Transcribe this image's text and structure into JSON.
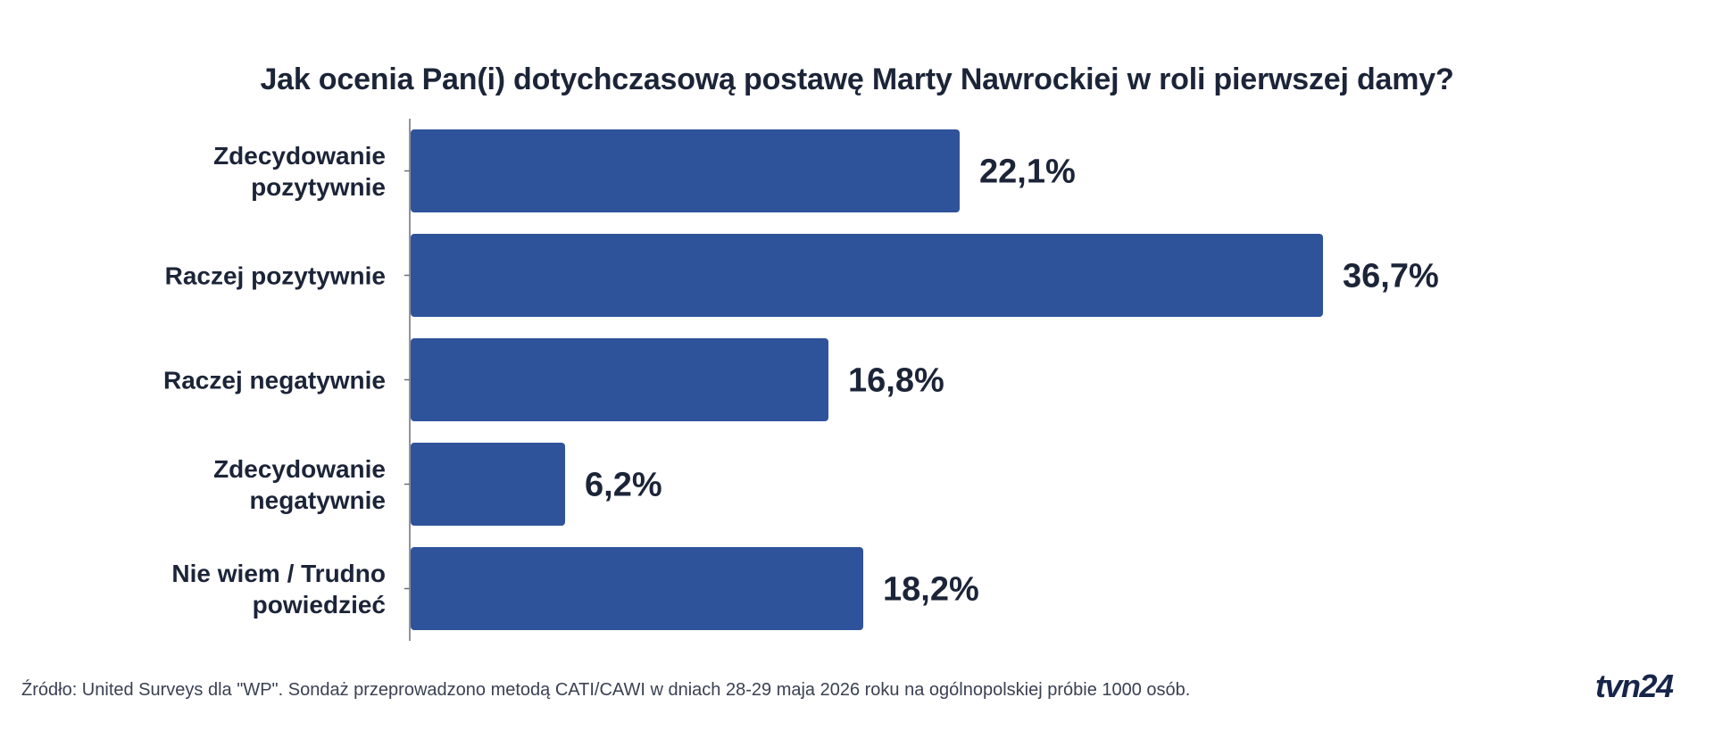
{
  "chart_data": {
    "type": "bar",
    "orientation": "horizontal",
    "title": "Jak ocenia Pan(i) dotychczasową postawę Marty Nawrockiej w roli pierwszej damy?",
    "categories": [
      [
        "Zdecydowanie",
        "pozytywnie"
      ],
      [
        "Raczej pozytywnie"
      ],
      [
        "Raczej negatywnie"
      ],
      [
        "Zdecydowanie",
        "negatywnie"
      ],
      [
        "Nie wiem / Trudno",
        "powiedzieć"
      ]
    ],
    "values": [
      22.1,
      36.7,
      16.8,
      6.2,
      18.2
    ],
    "value_labels": [
      "22,1%",
      "36,7%",
      "16,8%",
      "6,2%",
      "18,2%"
    ],
    "xlim": [
      0,
      36.7
    ],
    "grid": false,
    "bar_color": "#2e539b",
    "text_color": "#1c2438"
  },
  "source": "Źródło: United Surveys dla \"WP\". Sondaż przeprowadzono metodą CATI/CAWI w dniach 28-29 maja 2026 roku na ogólnopolskiej próbie 1000 osób.",
  "brand": {
    "logo_text": "tvn24",
    "color": "#17254a"
  }
}
